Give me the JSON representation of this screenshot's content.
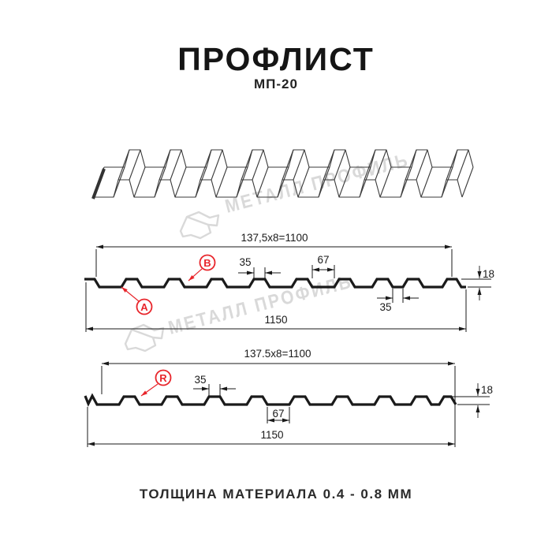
{
  "header": {
    "title": "ПРОФЛИСТ",
    "subtitle": "МП-20"
  },
  "watermark": {
    "text": "МЕТАЛЛ ПРОФИЛЬ",
    "color": "#d9d9d9"
  },
  "profile_top": {
    "dim_pitch": "137,5x8=1100",
    "dim_rib_width": "35",
    "dim_valley_width": "67",
    "dim_height": "18",
    "dim_groove": "35",
    "dim_overall": "1150",
    "label_a": "A",
    "label_b": "B"
  },
  "profile_bottom": {
    "dim_pitch": "137.5x8=1100",
    "dim_rib_width": "35",
    "dim_valley_width": "67",
    "dim_height": "18",
    "dim_overall": "1150",
    "label_r": "R"
  },
  "footer": {
    "note": "ТОЛЩИНА МАТЕРИАЛА 0.4 - 0.8 ММ"
  },
  "colors": {
    "line": "#1a1a1a",
    "accent": "#e8252b",
    "watermark": "#d9d9d9"
  }
}
